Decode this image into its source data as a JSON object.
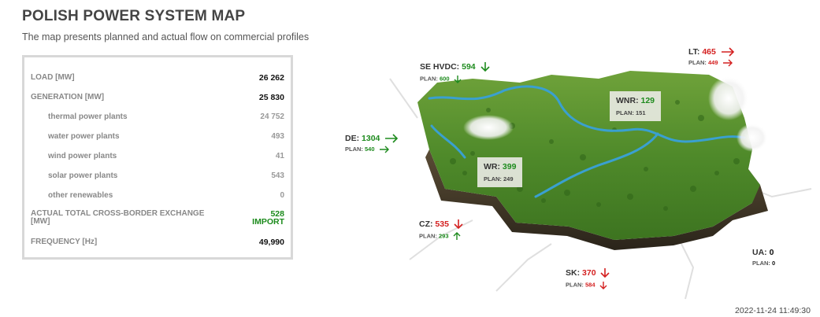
{
  "page": {
    "title": "POLISH POWER SYSTEM MAP",
    "subtitle": "The map presents planned and actual flow on commercial profiles",
    "timestamp": "2022-11-24 11:49:30"
  },
  "stats": {
    "load_label": "LOAD [MW]",
    "load_value": "26 262",
    "generation_label": "GENERATION [MW]",
    "generation_value": "25 830",
    "thermal_label": "thermal power plants",
    "thermal_value": "24 752",
    "water_label": "water power plants",
    "water_value": "493",
    "wind_label": "wind power plants",
    "wind_value": "41",
    "solar_label": "solar power plants",
    "solar_value": "543",
    "other_label": "other renewables",
    "other_value": "0",
    "exchange_label_1": "ACTUAL TOTAL CROSS-BORDER EXCHANGE",
    "exchange_label_2": "[MW]",
    "exchange_value": "528",
    "exchange_dir": "IMPORT",
    "frequency_label": "FREQUENCY [Hz]",
    "frequency_value": "49,990"
  },
  "flows": {
    "se": {
      "name": "SE HVDC:",
      "value": "594",
      "plan_label": "PLAN:",
      "plan": "600",
      "arrow_icon": "arrow-down-icon",
      "plan_arrow_icon": "arrow-down-icon",
      "color": "#1e8b1e"
    },
    "lt": {
      "name": "LT:",
      "value": "465",
      "plan_label": "PLAN:",
      "plan": "449",
      "arrow_icon": "arrow-right-icon",
      "plan_arrow_icon": "arrow-right-icon",
      "color": "#d42020"
    },
    "de": {
      "name": "DE:",
      "value": "1304",
      "plan_label": "PLAN:",
      "plan": "540",
      "arrow_icon": "arrow-right-icon",
      "plan_arrow_icon": "arrow-right-icon",
      "color": "#1e8b1e"
    },
    "cz": {
      "name": "CZ:",
      "value": "535",
      "plan_label": "PLAN:",
      "plan": "293",
      "arrow_icon": "arrow-down-icon",
      "plan_arrow_icon": "arrow-up-icon",
      "color": "#d42020"
    },
    "sk": {
      "name": "SK:",
      "value": "370",
      "plan_label": "PLAN:",
      "plan": "584",
      "arrow_icon": "arrow-down-icon",
      "plan_arrow_icon": "arrow-down-icon",
      "color": "#d42020"
    },
    "ua": {
      "name": "UA:",
      "value": "0",
      "plan_label": "PLAN:",
      "plan": "0"
    },
    "wnr": {
      "name": "WNR:",
      "value": "129",
      "plan_label": "PLAN:",
      "plan": "151"
    },
    "wr": {
      "name": "WR:",
      "value": "399",
      "plan_label": "PLAN:",
      "plan": "249"
    }
  }
}
